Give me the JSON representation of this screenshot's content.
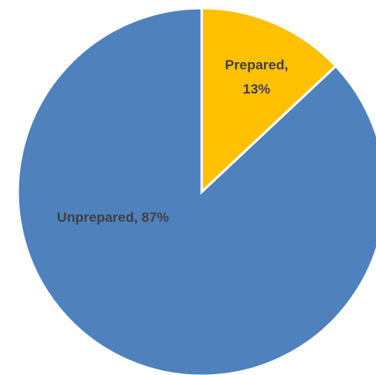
{
  "chart_data": {
    "type": "pie",
    "slices": [
      {
        "name": "Prepared",
        "value": 13,
        "label_lines": [
          "Prepared,",
          "13%"
        ],
        "color": "#FFC000"
      },
      {
        "name": "Unprepared",
        "value": 87,
        "label_lines": [
          "Unprepared,  87%"
        ],
        "color": "#4F81BD"
      }
    ],
    "start_angle_deg": 0,
    "direction": "clockwise",
    "legend": "none"
  }
}
